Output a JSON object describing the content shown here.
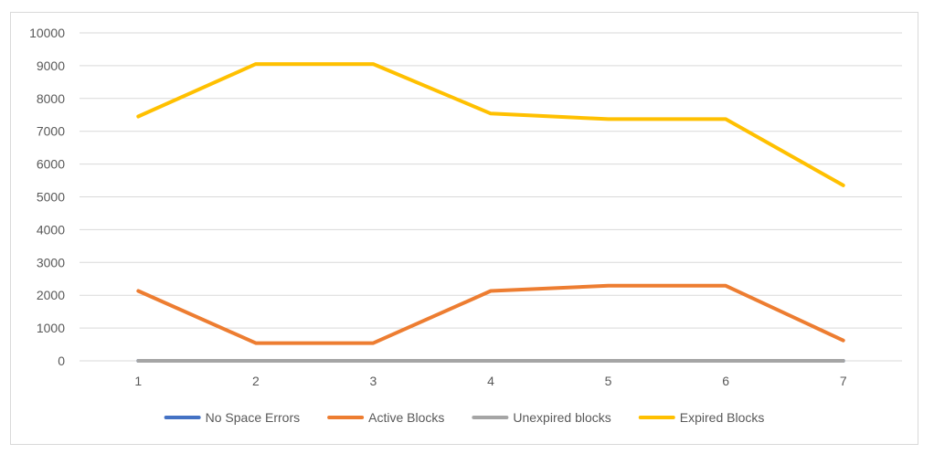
{
  "chart_data": {
    "type": "line",
    "title": "",
    "xlabel": "",
    "ylabel": "",
    "categories": [
      "1",
      "2",
      "3",
      "4",
      "5",
      "6",
      "7"
    ],
    "ylim": [
      0,
      10000
    ],
    "yticks": [
      0,
      1000,
      2000,
      3000,
      4000,
      5000,
      6000,
      7000,
      8000,
      9000,
      10000
    ],
    "y_tick_labels": [
      "0",
      "1000",
      "2000",
      "3000",
      "4000",
      "5000",
      "6000",
      "7000",
      "8000",
      "9000",
      "10000"
    ],
    "grid": "horizontal",
    "legend_position": "bottom",
    "series": [
      {
        "name": "No Space Errors",
        "color": "#4472c4",
        "values": [
          0,
          0,
          0,
          0,
          0,
          0,
          0
        ]
      },
      {
        "name": "Active Blocks",
        "color": "#ed7d31",
        "values": [
          2130,
          540,
          540,
          2130,
          2290,
          2290,
          620
        ]
      },
      {
        "name": "Unexpired blocks",
        "color": "#a5a5a5",
        "values": [
          0,
          0,
          0,
          0,
          0,
          0,
          0
        ]
      },
      {
        "name": "Expired Blocks",
        "color": "#ffc000",
        "values": [
          7450,
          9050,
          9050,
          7540,
          7370,
          7370,
          5350
        ]
      }
    ]
  }
}
